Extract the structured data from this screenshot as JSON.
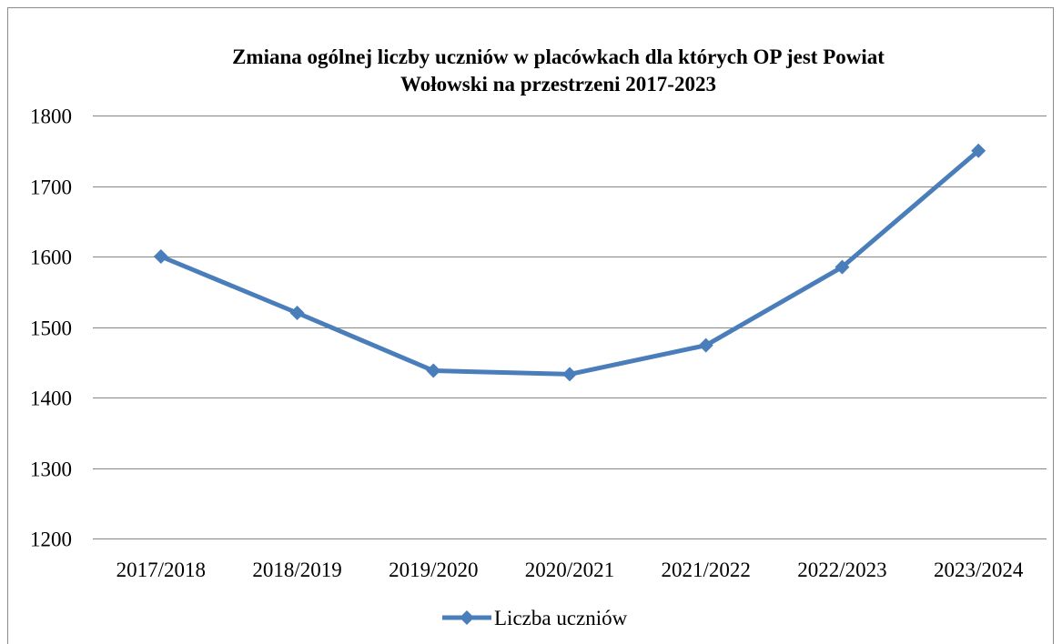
{
  "chart_data": {
    "type": "line",
    "title_lines": [
      "Zmiana ogólnej liczby uczniów w placówkach dla których OP jest Powiat",
      "Wołowski na przestrzeni 2017-2023"
    ],
    "xlabel": "",
    "ylabel": "",
    "categories": [
      "2017/2018",
      "2018/2019",
      "2019/2020",
      "2020/2021",
      "2021/2022",
      "2022/2023",
      "2023/2024"
    ],
    "series": [
      {
        "name": "Liczba uczniów",
        "values": [
          1600,
          1520,
          1438,
          1433,
          1474,
          1585,
          1750
        ],
        "color": "#4a7ebb",
        "marker": "diamond"
      }
    ],
    "ylim": [
      1200,
      1800
    ],
    "yticks": [
      "1200",
      "1300",
      "1400",
      "1500",
      "1600",
      "1700",
      "1800"
    ],
    "grid": true,
    "grid_color": "#868686",
    "legend": "bottom"
  }
}
